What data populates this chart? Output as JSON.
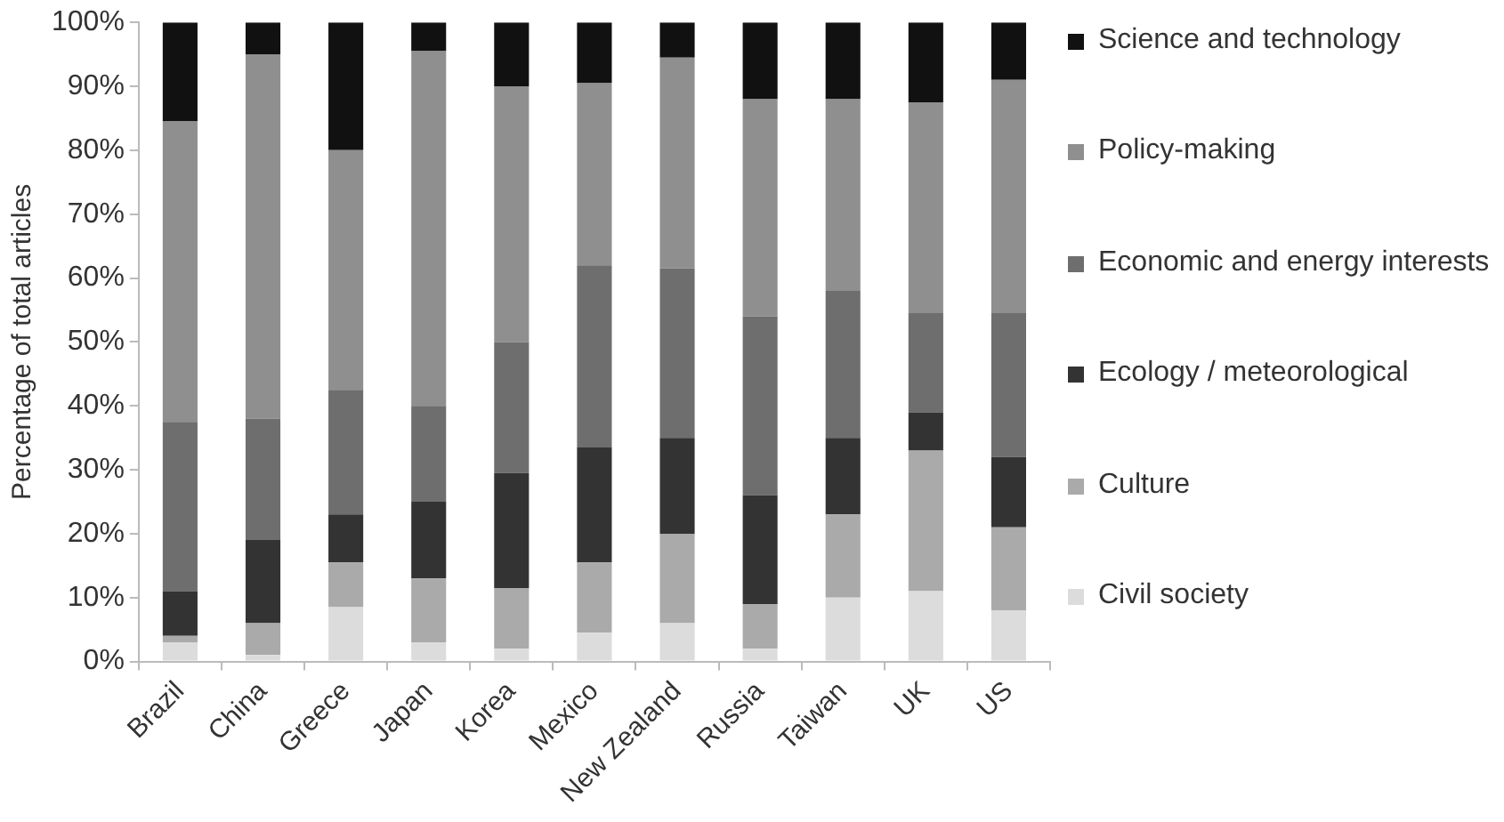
{
  "chart_data": {
    "type": "bar",
    "stacked": true,
    "ylabel": "Percentage of total articles",
    "categories": [
      "Brazil",
      "China",
      "Greece",
      "Japan",
      "Korea",
      "Mexico",
      "New Zealand",
      "Russia",
      "Taiwan",
      "UK",
      "US"
    ],
    "series": [
      {
        "name": "Civil society",
        "color": "#dcdcdc",
        "values": [
          3,
          1,
          8.5,
          3,
          2,
          4.5,
          6,
          2,
          10,
          11,
          8
        ]
      },
      {
        "name": "Culture",
        "color": "#aaaaaa",
        "values": [
          1,
          5,
          7,
          10,
          9.5,
          11,
          14,
          7,
          13,
          22,
          13
        ]
      },
      {
        "name": "Ecology / meteorological",
        "color": "#333333",
        "values": [
          7,
          13,
          7.5,
          12,
          18,
          18,
          15,
          17,
          12,
          6,
          11
        ]
      },
      {
        "name": "Economic and energy interests",
        "color": "#6e6e6e",
        "values": [
          26.5,
          19,
          19.5,
          15,
          20.5,
          28.5,
          26.5,
          28,
          23,
          15.5,
          22.5
        ]
      },
      {
        "name": "Policy-making",
        "color": "#8f8f8f",
        "values": [
          47,
          57,
          37.5,
          55.5,
          40,
          28.5,
          33,
          34,
          30,
          33,
          36.5
        ]
      },
      {
        "name": "Science and technology",
        "color": "#111111",
        "values": [
          15.5,
          5,
          20,
          4.5,
          10,
          9.5,
          5.5,
          12,
          12,
          12.5,
          9
        ]
      }
    ],
    "ylim": [
      0,
      100
    ],
    "yticks": [
      {
        "value": 0,
        "label": "0%"
      },
      {
        "value": 10,
        "label": "10%"
      },
      {
        "value": 20,
        "label": "20%"
      },
      {
        "value": 30,
        "label": "30%"
      },
      {
        "value": 40,
        "label": "40%"
      },
      {
        "value": 50,
        "label": "50%"
      },
      {
        "value": 60,
        "label": "60%"
      },
      {
        "value": 70,
        "label": "70%"
      },
      {
        "value": 80,
        "label": "80%"
      },
      {
        "value": 90,
        "label": "90%"
      },
      {
        "value": 100,
        "label": "100%"
      }
    ],
    "grid": false,
    "legend": "right"
  }
}
